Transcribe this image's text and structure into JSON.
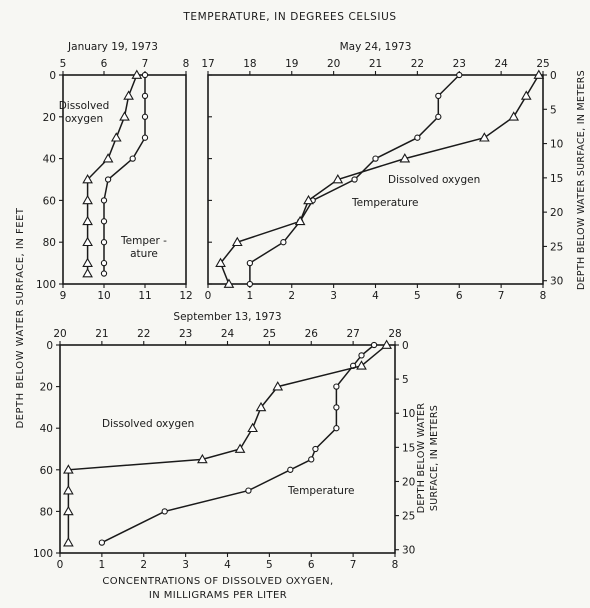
{
  "figure": {
    "top_title": "TEMPERATURE, IN DEGREES CELSIUS",
    "left_axis_title": "DEPTH BELOW WATER SURFACE, IN FEET",
    "right_axis_title_top": "DEPTH BELOW WATER SURFACE, IN METERS",
    "right_axis_title_bottom_line1": "DEPTH BELOW WATER",
    "right_axis_title_bottom_line2": "SURFACE, IN METERS",
    "bottom_title_line1": "CONCENTRATIONS OF DISSOLVED OXYGEN,",
    "bottom_title_line2": "IN MILLIGRAMS PER LITER"
  },
  "chart_data": [
    {
      "id": "jan",
      "type": "line",
      "title": "January 19, 1973",
      "xlabel_top": "TEMPERATURE, IN DEGREES CELSIUS",
      "xlabel_bottom": "CONCENTRATIONS OF DISSOLVED OXYGEN, IN MILLIGRAMS PER LITER",
      "ylabel": "DEPTH BELOW WATER SURFACE, IN FEET",
      "top_axis": {
        "label": "Temperature (°C)",
        "range": [
          5,
          8
        ],
        "ticks": [
          "5",
          "6",
          "7",
          "8"
        ]
      },
      "bottom_axis": {
        "label": "Dissolved oxygen (mg/L)",
        "range": [
          9,
          12
        ],
        "ticks": [
          "9",
          "10",
          "11",
          "12"
        ]
      },
      "y_axis": {
        "range": [
          0,
          100
        ],
        "inverted": true,
        "ticks": [
          "0",
          "20",
          "40",
          "60",
          "80",
          "100"
        ]
      },
      "series": [
        {
          "name": "Temperature",
          "label_line1": "Temper -",
          "label_line2": "ature",
          "axis": "top",
          "marker": "circle",
          "points": [
            [
              7.0,
              0
            ],
            [
              7.0,
              10
            ],
            [
              7.0,
              20
            ],
            [
              7.0,
              30
            ],
            [
              6.7,
              40
            ],
            [
              6.1,
              50
            ],
            [
              6.0,
              60
            ],
            [
              6.0,
              70
            ],
            [
              6.0,
              80
            ],
            [
              6.0,
              90
            ],
            [
              6.0,
              95
            ]
          ]
        },
        {
          "name": "Dissolved oxygen",
          "label_line1": "Dissolved",
          "label_line2": "oxygen",
          "axis": "bottom",
          "marker": "triangle",
          "points": [
            [
              10.8,
              0
            ],
            [
              10.6,
              10
            ],
            [
              10.5,
              20
            ],
            [
              10.3,
              30
            ],
            [
              10.1,
              40
            ],
            [
              9.6,
              50
            ],
            [
              9.6,
              60
            ],
            [
              9.6,
              70
            ],
            [
              9.6,
              80
            ],
            [
              9.6,
              90
            ],
            [
              9.6,
              95
            ]
          ]
        }
      ]
    },
    {
      "id": "may",
      "type": "line",
      "title": "May 24, 1973",
      "top_axis": {
        "label": "Temperature (°C)",
        "range": [
          17,
          25
        ],
        "ticks": [
          "17",
          "18",
          "19",
          "20",
          "21",
          "22",
          "23",
          "24",
          "25"
        ]
      },
      "bottom_axis": {
        "label": "Dissolved oxygen (mg/L)",
        "range": [
          0,
          8
        ],
        "ticks": [
          "0",
          "1",
          "2",
          "3",
          "4",
          "5",
          "6",
          "7",
          "8"
        ]
      },
      "y_axis": {
        "range": [
          0,
          100
        ],
        "inverted": true
      },
      "right_axis": {
        "label": "DEPTH BELOW WATER SURFACE, IN METERS",
        "ticks": [
          "0",
          "5",
          "10",
          "15",
          "20",
          "25",
          "30"
        ]
      },
      "series": [
        {
          "name": "Temperature",
          "label_line1": "Temperature",
          "axis": "top",
          "marker": "circle",
          "points": [
            [
              23.0,
              0
            ],
            [
              22.5,
              10
            ],
            [
              22.5,
              20
            ],
            [
              22.0,
              30
            ],
            [
              21.0,
              40
            ],
            [
              20.5,
              50
            ],
            [
              19.5,
              60
            ],
            [
              19.2,
              70
            ],
            [
              18.8,
              80
            ],
            [
              18.0,
              90
            ],
            [
              18.0,
              100
            ]
          ]
        },
        {
          "name": "Dissolved oxygen",
          "label_line1": "Dissolved oxygen",
          "axis": "bottom",
          "marker": "triangle",
          "points": [
            [
              7.9,
              0
            ],
            [
              7.6,
              10
            ],
            [
              7.3,
              20
            ],
            [
              6.6,
              30
            ],
            [
              4.7,
              40
            ],
            [
              3.1,
              50
            ],
            [
              2.4,
              60
            ],
            [
              2.2,
              70
            ],
            [
              0.7,
              80
            ],
            [
              0.3,
              90
            ],
            [
              0.5,
              100
            ]
          ]
        }
      ]
    },
    {
      "id": "sep",
      "type": "line",
      "title": "September 13, 1973",
      "top_axis": {
        "label": "Temperature (°C)",
        "range": [
          20,
          28
        ],
        "ticks": [
          "20",
          "21",
          "22",
          "23",
          "24",
          "25",
          "26",
          "27",
          "28"
        ]
      },
      "bottom_axis": {
        "label": "Dissolved oxygen (mg/L)",
        "range": [
          0,
          8
        ],
        "ticks": [
          "0",
          "1",
          "2",
          "3",
          "4",
          "5",
          "6",
          "7",
          "8"
        ]
      },
      "y_axis": {
        "range": [
          0,
          100
        ],
        "inverted": true,
        "ticks": [
          "0",
          "20",
          "40",
          "60",
          "80",
          "100"
        ]
      },
      "right_axis": {
        "label": "DEPTH BELOW WATER SURFACE, IN METERS",
        "ticks": [
          "0",
          "5",
          "10",
          "15",
          "20",
          "25",
          "30"
        ]
      },
      "series": [
        {
          "name": "Temperature",
          "label_line1": "Temperature",
          "axis": "top",
          "marker": "circle",
          "points": [
            [
              27.5,
              0
            ],
            [
              27.2,
              5
            ],
            [
              27.0,
              10
            ],
            [
              26.6,
              20
            ],
            [
              26.6,
              30
            ],
            [
              26.6,
              40
            ],
            [
              26.1,
              50
            ],
            [
              26.0,
              55
            ],
            [
              25.5,
              60
            ],
            [
              24.5,
              70
            ],
            [
              22.5,
              80
            ],
            [
              21.0,
              95
            ]
          ]
        },
        {
          "name": "Dissolved oxygen",
          "label_line1": "Dissolved oxygen",
          "axis": "bottom",
          "marker": "triangle",
          "points": [
            [
              7.8,
              0
            ],
            [
              7.2,
              10
            ],
            [
              5.2,
              20
            ],
            [
              4.8,
              30
            ],
            [
              4.6,
              40
            ],
            [
              4.3,
              50
            ],
            [
              3.4,
              55
            ],
            [
              0.2,
              60
            ],
            [
              0.2,
              70
            ],
            [
              0.2,
              80
            ],
            [
              0.2,
              95
            ]
          ]
        }
      ]
    }
  ]
}
